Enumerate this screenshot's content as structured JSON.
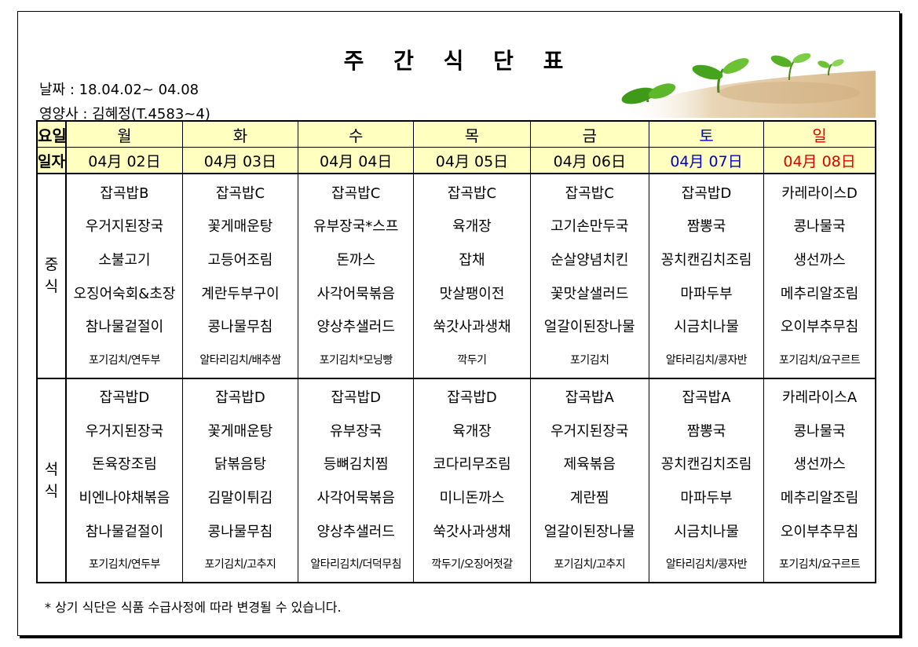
{
  "header": {
    "title": "주 간 식 단 표",
    "date_range": "날짜 : 18.04.02~ 04.08",
    "dietitian": "영양사 : 김혜정(T.4583~4)"
  },
  "labels": {
    "day": "요일",
    "date": "일자",
    "lunch": "중식",
    "dinner": "석식"
  },
  "days": [
    {
      "name": "월",
      "date": "04月 02日"
    },
    {
      "name": "화",
      "date": "04月 03日"
    },
    {
      "name": "수",
      "date": "04月 04日"
    },
    {
      "name": "목",
      "date": "04月 05日"
    },
    {
      "name": "금",
      "date": "04月 06日"
    },
    {
      "name": "토",
      "date": "04月 07日"
    },
    {
      "name": "일",
      "date": "04月 08日"
    }
  ],
  "lunch": [
    [
      "잡곡밥B",
      "우거지된장국",
      "소불고기",
      "오징어숙회&초장",
      "참나물겉절이",
      "포기김치/연두부"
    ],
    [
      "잡곡밥C",
      "꽃게매운탕",
      "고등어조림",
      "계란두부구이",
      "콩나물무침",
      "알타리김치/배추쌈"
    ],
    [
      "잡곡밥C",
      "유부장국*스프",
      "돈까스",
      "사각어묵볶음",
      "양상추샐러드",
      "포기김치*모닝빵"
    ],
    [
      "잡곡밥C",
      "육개장",
      "잡채",
      "맛살팽이전",
      "쑥갓사과생채",
      "깍두기"
    ],
    [
      "잡곡밥C",
      "고기손만두국",
      "순살양념치킨",
      "꽃맛살샐러드",
      "얼갈이된장나물",
      "포기김치"
    ],
    [
      "잡곡밥D",
      "짬뽕국",
      "꽁치캔김치조림",
      "마파두부",
      "시금치나물",
      "알타리김치/콩자반"
    ],
    [
      "카레라이스D",
      "콩나물국",
      "생선까스",
      "메추리알조림",
      "오이부추무침",
      "포기김치/요구르트"
    ]
  ],
  "dinner": [
    [
      "잡곡밥D",
      "우거지된장국",
      "돈육장조림",
      "비엔나야채볶음",
      "참나물겉절이",
      "포기김치/연두부"
    ],
    [
      "잡곡밥D",
      "꽃게매운탕",
      "닭볶음탕",
      "김말이튀김",
      "콩나물무침",
      "포기김치/고추지"
    ],
    [
      "잡곡밥D",
      "유부장국",
      "등뼈김치찜",
      "사각어묵볶음",
      "양상추샐러드",
      "알타리김치/더덕무침"
    ],
    [
      "잡곡밥D",
      "육개장",
      "코다리무조림",
      "미니돈까스",
      "쑥갓사과생채",
      "깍두기/오징어젓갈"
    ],
    [
      "잡곡밥A",
      "우거지된장국",
      "제육볶음",
      "계란찜",
      "얼갈이된장나물",
      "포기김치/고추지"
    ],
    [
      "잡곡밥A",
      "짬뽕국",
      "꽁치캔김치조림",
      "마파두부",
      "시금치나물",
      "알타리김치/콩자반"
    ],
    [
      "카레라이스A",
      "콩나물국",
      "생선까스",
      "메추리알조림",
      "오이부추무침",
      "포기김치/요구르트"
    ]
  ],
  "footnote": "* 상기 식단은 식품 수급사정에 따라 변경될 수 있습니다.",
  "colors": {
    "header_bg": "#ffffc0",
    "saturday": "#0000cc",
    "sunday": "#dd0000"
  }
}
